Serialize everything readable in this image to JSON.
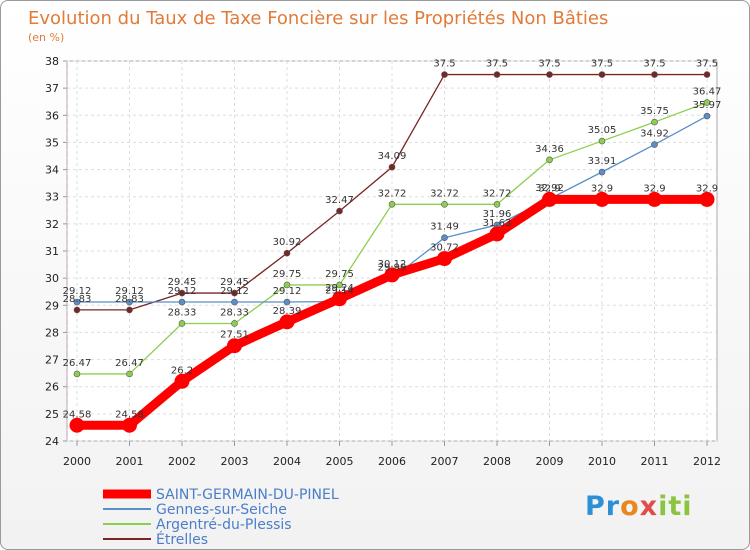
{
  "chart_data": {
    "type": "line",
    "title": "Evolution du Taux de Taxe Foncière sur les Propriétés Non Bâties",
    "unit_label": "(en %)",
    "x": [
      2000,
      2001,
      2002,
      2003,
      2004,
      2005,
      2006,
      2007,
      2008,
      2009,
      2010,
      2011,
      2012
    ],
    "ylim": [
      24,
      38
    ],
    "yticks": [
      24,
      25,
      26,
      27,
      28,
      29,
      30,
      31,
      32,
      33,
      34,
      35,
      36,
      37,
      38
    ],
    "grid": true,
    "series": [
      {
        "name": "Étrelles",
        "color": "#7b2525",
        "values": [
          28.83,
          28.83,
          29.45,
          29.45,
          30.92,
          32.47,
          34.09,
          37.5,
          37.5,
          37.5,
          37.5,
          37.5,
          37.5
        ],
        "labels": [
          "28.83",
          "28.83",
          "29.45",
          "29.45",
          "30.92",
          "32.47",
          "34.09",
          "37.5",
          "37.5",
          "37.5",
          "37.5",
          "37.5",
          "37.5"
        ]
      },
      {
        "name": "Argentré-du-Plessis",
        "color": "#8ccf4e",
        "values": [
          26.47,
          26.47,
          28.33,
          28.33,
          29.75,
          29.75,
          32.72,
          32.72,
          32.72,
          34.36,
          35.05,
          35.75,
          36.47
        ],
        "labels": [
          "26.47",
          "26.47",
          "28.33",
          "28.33",
          "29.75",
          "29.75",
          "32.72",
          "32.72",
          "32.72",
          "34.36",
          "35.05",
          "35.75",
          "36.47"
        ]
      },
      {
        "name": "Gennes-sur-Seiche",
        "color": "#5b8fc9",
        "values": [
          29.12,
          29.12,
          29.12,
          29.12,
          29.12,
          29.14,
          29.99,
          31.49,
          31.96,
          32.92,
          33.91,
          34.92,
          35.97
        ],
        "labels": [
          "29.12",
          "29.12",
          "29.12",
          "29.12",
          "29.12",
          "29.14",
          "29.99",
          "31.49",
          "31.96",
          "32.92",
          "33.91",
          "34.92",
          "35.97"
        ]
      },
      {
        "name": "SAINT-GERMAIN-DU-PINEL",
        "color": "#ff0000",
        "values": [
          24.58,
          24.58,
          26.2,
          27.51,
          28.39,
          29.24,
          30.12,
          30.72,
          31.63,
          32.9,
          32.9,
          32.9,
          32.9
        ],
        "labels": [
          "24.58",
          "24.58",
          "26.2",
          "27.51",
          "28.39",
          "29.24",
          "30.12",
          "30.72",
          "31.63",
          "32.9",
          "32.9",
          "32.9",
          "32.9"
        ]
      }
    ],
    "legend": [
      "SAINT-GERMAIN-DU-PINEL",
      "Gennes-sur-Seiche",
      "Argentré-du-Plessis",
      "Étrelles"
    ],
    "legend_position": "bottom-left"
  },
  "brand": {
    "parts": [
      "Pr",
      "o",
      "x",
      "iti"
    ]
  }
}
